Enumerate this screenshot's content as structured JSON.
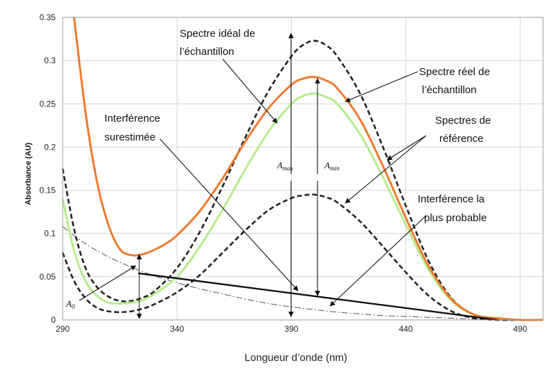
{
  "chart_data": {
    "type": "line",
    "xlabel": "Longueur d’onde (nm)",
    "ylabel": "Absorbance (AU)",
    "xlim": [
      290,
      500
    ],
    "ylim": [
      0,
      0.35
    ],
    "x_ticks": [
      "290",
      "340",
      "390",
      "440",
      "490"
    ],
    "y_ticks": [
      "0",
      "0.05",
      "0.1",
      "0.15",
      "0.2",
      "0.25",
      "0.3",
      "0.35"
    ],
    "grid": true,
    "series": [
      {
        "name": "Spectre réel de l’échantillon",
        "color": "#f07a2e",
        "style": "solid",
        "x": [
          295,
          300,
          305,
          310,
          315,
          320,
          325,
          330,
          335,
          340,
          350,
          360,
          370,
          380,
          390,
          395,
          400,
          405,
          410,
          420,
          430,
          440,
          450,
          460,
          470,
          480,
          490,
          500
        ],
        "y": [
          0.35,
          0.24,
          0.16,
          0.11,
          0.082,
          0.075,
          0.076,
          0.081,
          0.088,
          0.098,
          0.126,
          0.164,
          0.207,
          0.245,
          0.272,
          0.279,
          0.281,
          0.277,
          0.268,
          0.232,
          0.178,
          0.118,
          0.062,
          0.024,
          0.006,
          0.002,
          0.0,
          0.0
        ]
      },
      {
        "name": "",
        "color": "#b5ec8f",
        "style": "solid",
        "x": [
          290,
          295,
          300,
          305,
          310,
          315,
          320,
          325,
          330,
          340,
          350,
          360,
          370,
          380,
          390,
          395,
          400,
          405,
          410,
          420,
          430,
          440,
          450,
          460,
          470,
          480,
          490,
          500
        ],
        "y": [
          0.14,
          0.08,
          0.045,
          0.028,
          0.02,
          0.019,
          0.02,
          0.023,
          0.03,
          0.05,
          0.085,
          0.128,
          0.175,
          0.218,
          0.25,
          0.259,
          0.262,
          0.258,
          0.25,
          0.215,
          0.165,
          0.11,
          0.058,
          0.022,
          0.006,
          0.002,
          0.0,
          0.0
        ]
      },
      {
        "name": "",
        "color": "#222222",
        "style": "dashed",
        "x": [
          290,
          295,
          300,
          305,
          310,
          315,
          320,
          325,
          330,
          340,
          350,
          360,
          370,
          380,
          390,
          395,
          400,
          405,
          410,
          420,
          430,
          440,
          450,
          460,
          470,
          480,
          490
        ],
        "y": [
          0.175,
          0.105,
          0.06,
          0.038,
          0.027,
          0.022,
          0.022,
          0.026,
          0.033,
          0.06,
          0.102,
          0.155,
          0.212,
          0.265,
          0.305,
          0.318,
          0.323,
          0.318,
          0.305,
          0.262,
          0.2,
          0.132,
          0.068,
          0.025,
          0.006,
          0.001,
          0.0
        ]
      },
      {
        "name": "",
        "color": "#222222",
        "style": "dashed",
        "x": [
          290,
          295,
          300,
          305,
          310,
          315,
          320,
          325,
          330,
          340,
          350,
          360,
          370,
          380,
          390,
          395,
          400,
          405,
          410,
          420,
          430,
          440,
          450,
          460,
          470,
          480,
          490
        ],
        "y": [
          0.078,
          0.045,
          0.025,
          0.014,
          0.01,
          0.009,
          0.01,
          0.013,
          0.018,
          0.032,
          0.052,
          0.078,
          0.104,
          0.127,
          0.141,
          0.144,
          0.145,
          0.142,
          0.136,
          0.114,
          0.085,
          0.055,
          0.028,
          0.01,
          0.002,
          0.0,
          0.0
        ]
      },
      {
        "name": "",
        "color": "#555555",
        "style": "dashdot",
        "x": [
          290,
          300,
          310,
          320,
          330,
          340,
          350,
          360,
          370,
          380,
          390,
          400,
          410,
          420,
          430,
          440,
          450,
          460,
          470,
          480,
          490,
          500
        ],
        "y": [
          0.108,
          0.088,
          0.073,
          0.061,
          0.051,
          0.043,
          0.036,
          0.03,
          0.024,
          0.019,
          0.015,
          0.012,
          0.009,
          0.007,
          0.005,
          0.004,
          0.003,
          0.002,
          0.001,
          0.0,
          0.0,
          0.0
        ]
      },
      {
        "name": "Interférence la plus probable",
        "color": "#111111",
        "style": "solid",
        "x": [
          323,
          480
        ],
        "y": [
          0.054,
          0.0
        ]
      }
    ],
    "annotations": {
      "spectre_ideal_1": "Spectre idéal de",
      "spectre_ideal_2": "l’échantillon",
      "spectre_reel_1": "Spectre réel de",
      "spectre_reel_2": "l’échantillon",
      "interf_sur_1": "Interférence",
      "interf_sur_2": "surestimée",
      "spectres_ref_1": "Spectres de",
      "spectres_ref_2": "référence",
      "interf_prob_1": "Interférence la",
      "interf_prob_2": "plus probable",
      "a_max": "A",
      "a_max_sub": "max",
      "a_min": "A",
      "a_min_sub": "min",
      "a0": "A",
      "a0_sub": "0"
    }
  }
}
